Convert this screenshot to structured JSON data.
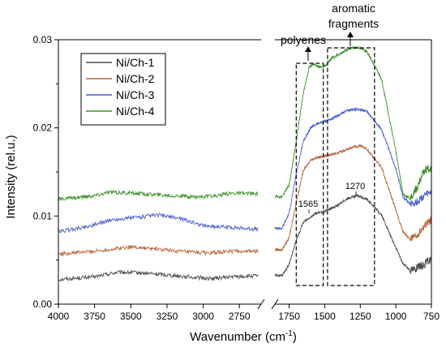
{
  "chart_data": {
    "type": "line",
    "xlabel": "Wavenumber (cm",
    "xlabel_sup": "-1",
    "xlabel_end": ")",
    "ylabel": "Intensity (rel.u.)",
    "ylim": [
      0,
      0.03
    ],
    "y_ticks": [
      "0.00",
      "0.01",
      "0.02",
      "0.03"
    ],
    "x_axis": {
      "reversed": true,
      "broken": true,
      "left_range": [
        4000,
        2600
      ],
      "right_range": [
        1850,
        750
      ],
      "tick_labels_left": [
        "4000",
        "3750",
        "3500",
        "3250",
        "3000",
        "2750"
      ],
      "tick_labels_right": [
        "1750",
        "1500",
        "1250",
        "1000",
        "750"
      ]
    },
    "legend_position": "top-left",
    "series": [
      {
        "name": "Ni/Ch-1",
        "color": "#4d4d4d",
        "left": [
          [
            4000,
            0.0028
          ],
          [
            3750,
            0.0031
          ],
          [
            3600,
            0.0036
          ],
          [
            3500,
            0.0036
          ],
          [
            3300,
            0.0034
          ],
          [
            3100,
            0.0031
          ],
          [
            2950,
            0.0029
          ],
          [
            2800,
            0.0031
          ],
          [
            2620,
            0.0032
          ]
        ],
        "right": [
          [
            1850,
            0.0033
          ],
          [
            1800,
            0.0032
          ],
          [
            1750,
            0.0045
          ],
          [
            1700,
            0.0072
          ],
          [
            1650,
            0.0093
          ],
          [
            1600,
            0.0099
          ],
          [
            1565,
            0.0103
          ],
          [
            1500,
            0.0105
          ],
          [
            1400,
            0.0113
          ],
          [
            1350,
            0.0119
          ],
          [
            1300,
            0.0122
          ],
          [
            1270,
            0.0123
          ],
          [
            1200,
            0.0119
          ],
          [
            1100,
            0.0101
          ],
          [
            1000,
            0.0064
          ],
          [
            950,
            0.0046
          ],
          [
            900,
            0.0039
          ],
          [
            850,
            0.0041
          ],
          [
            800,
            0.0045
          ],
          [
            750,
            0.0052
          ]
        ]
      },
      {
        "name": "Ni/Ch-2",
        "color": "#b7643b",
        "left": [
          [
            4000,
            0.0057
          ],
          [
            3750,
            0.006
          ],
          [
            3600,
            0.0063
          ],
          [
            3500,
            0.0065
          ],
          [
            3300,
            0.0062
          ],
          [
            3100,
            0.0059
          ],
          [
            2950,
            0.0058
          ],
          [
            2800,
            0.006
          ],
          [
            2620,
            0.006
          ]
        ],
        "right": [
          [
            1850,
            0.0062
          ],
          [
            1800,
            0.0062
          ],
          [
            1750,
            0.0075
          ],
          [
            1700,
            0.0115
          ],
          [
            1650,
            0.0152
          ],
          [
            1600,
            0.0163
          ],
          [
            1565,
            0.0166
          ],
          [
            1500,
            0.0168
          ],
          [
            1400,
            0.0172
          ],
          [
            1300,
            0.0178
          ],
          [
            1250,
            0.018
          ],
          [
            1200,
            0.0175
          ],
          [
            1100,
            0.0155
          ],
          [
            1000,
            0.0107
          ],
          [
            950,
            0.0082
          ],
          [
            900,
            0.0074
          ],
          [
            850,
            0.0078
          ],
          [
            800,
            0.0088
          ],
          [
            750,
            0.0097
          ]
        ]
      },
      {
        "name": "Ni/Ch-3",
        "color": "#4a5fd0",
        "left": [
          [
            4000,
            0.0082
          ],
          [
            3800,
            0.0088
          ],
          [
            3650,
            0.0095
          ],
          [
            3500,
            0.0098
          ],
          [
            3300,
            0.0101
          ],
          [
            3150,
            0.0097
          ],
          [
            3000,
            0.0089
          ],
          [
            2800,
            0.0087
          ],
          [
            2620,
            0.0085
          ]
        ],
        "right": [
          [
            1850,
            0.0086
          ],
          [
            1800,
            0.0086
          ],
          [
            1750,
            0.0103
          ],
          [
            1700,
            0.0148
          ],
          [
            1650,
            0.0185
          ],
          [
            1600,
            0.02
          ],
          [
            1550,
            0.0205
          ],
          [
            1450,
            0.021
          ],
          [
            1350,
            0.0219
          ],
          [
            1300,
            0.0221
          ],
          [
            1250,
            0.0221
          ],
          [
            1200,
            0.0218
          ],
          [
            1100,
            0.0198
          ],
          [
            1000,
            0.0154
          ],
          [
            950,
            0.0122
          ],
          [
            900,
            0.0114
          ],
          [
            850,
            0.0116
          ],
          [
            800,
            0.0123
          ],
          [
            750,
            0.0127
          ]
        ]
      },
      {
        "name": "Ni/Ch-4",
        "color": "#3e8f2c",
        "left": [
          [
            4000,
            0.0119
          ],
          [
            3750,
            0.0123
          ],
          [
            3650,
            0.0127
          ],
          [
            3500,
            0.0126
          ],
          [
            3300,
            0.0124
          ],
          [
            3100,
            0.0122
          ],
          [
            2950,
            0.0122
          ],
          [
            2800,
            0.0126
          ],
          [
            2620,
            0.0125
          ]
        ],
        "right": [
          [
            1850,
            0.0122
          ],
          [
            1800,
            0.0122
          ],
          [
            1750,
            0.0135
          ],
          [
            1700,
            0.0185
          ],
          [
            1650,
            0.024
          ],
          [
            1610,
            0.0268
          ],
          [
            1580,
            0.0273
          ],
          [
            1540,
            0.0269
          ],
          [
            1500,
            0.027
          ],
          [
            1450,
            0.0279
          ],
          [
            1350,
            0.0288
          ],
          [
            1300,
            0.0291
          ],
          [
            1250,
            0.0291
          ],
          [
            1200,
            0.0286
          ],
          [
            1100,
            0.0255
          ],
          [
            1000,
            0.0174
          ],
          [
            950,
            0.0125
          ],
          [
            900,
            0.012
          ],
          [
            850,
            0.0133
          ],
          [
            800,
            0.0152
          ],
          [
            750,
            0.0154
          ]
        ]
      }
    ],
    "annotations": {
      "peak_1565": "1565",
      "peak_1270": "1270",
      "polyenes": "polyenes",
      "aromatic_line1": "aromatic",
      "aromatic_line2": "fragments",
      "polyenes_box": [
        1700,
        1510
      ],
      "aromatic_box": [
        1480,
        1150
      ]
    }
  }
}
